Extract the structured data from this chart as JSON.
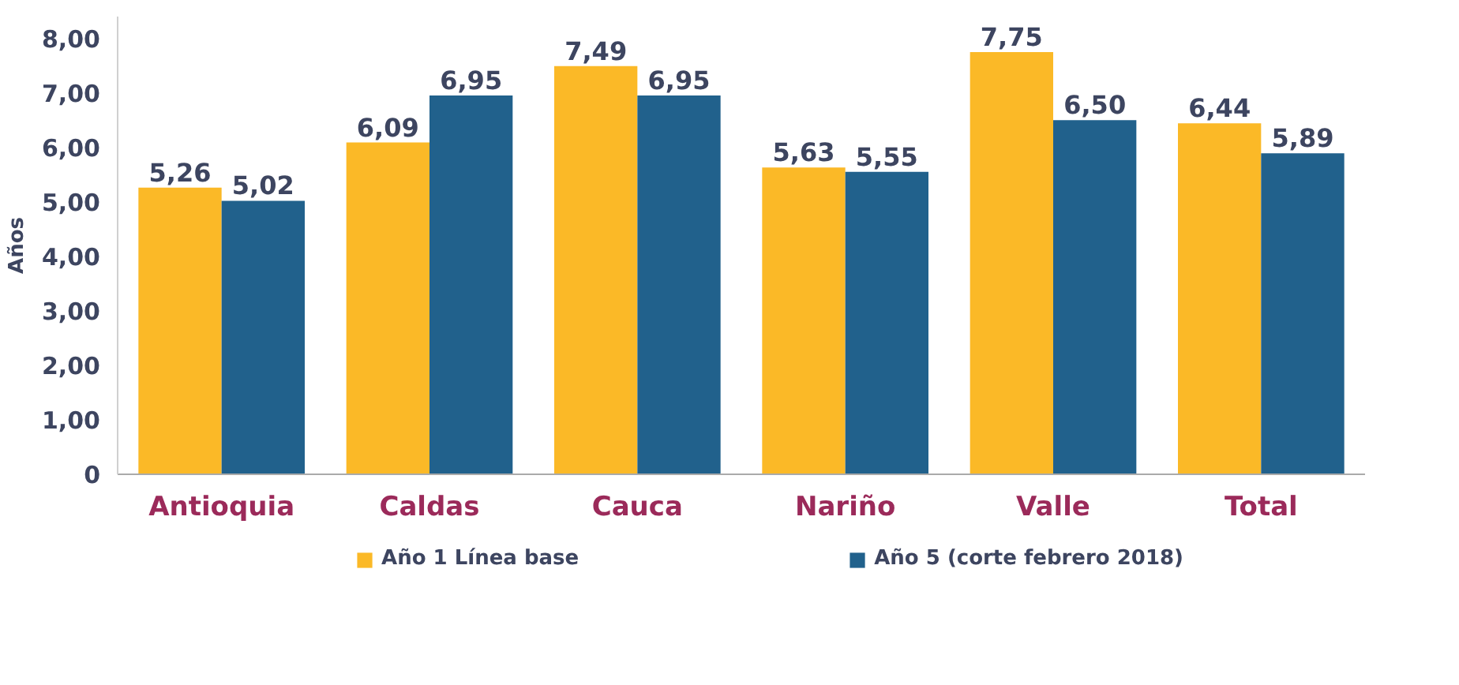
{
  "chart_data": {
    "type": "bar",
    "ylabel": "Años",
    "categories": [
      "Antioquia",
      "Caldas",
      "Cauca",
      "Nariño",
      "Valle",
      "Total"
    ],
    "series": [
      {
        "name": "Año 1 Línea base",
        "color": "#fbb927",
        "values": [
          5.26,
          6.09,
          7.49,
          5.63,
          7.75,
          6.44
        ],
        "value_labels": [
          "5,26",
          "6,09",
          "7,49",
          "5,63",
          "7,75",
          "6,44"
        ]
      },
      {
        "name": "Año 5 (corte febrero 2018)",
        "color": "#21618c",
        "values": [
          5.02,
          6.95,
          6.95,
          5.55,
          6.5,
          5.89
        ],
        "value_labels": [
          "5,02",
          "6,95",
          "6,95",
          "5,55",
          "6,50",
          "5,89"
        ]
      }
    ],
    "ylim": [
      0,
      8.4
    ],
    "yticks": [
      {
        "value": 0,
        "label": "0"
      },
      {
        "value": 1,
        "label": "1,00"
      },
      {
        "value": 2,
        "label": "2,00"
      },
      {
        "value": 3,
        "label": "3,00"
      },
      {
        "value": 4,
        "label": "4,00"
      },
      {
        "value": 5,
        "label": "5,00"
      },
      {
        "value": 6,
        "label": "6,00"
      },
      {
        "value": 7,
        "label": "7,00"
      },
      {
        "value": 8,
        "label": "8,00"
      }
    ],
    "grid": false,
    "legend": "bottom"
  }
}
